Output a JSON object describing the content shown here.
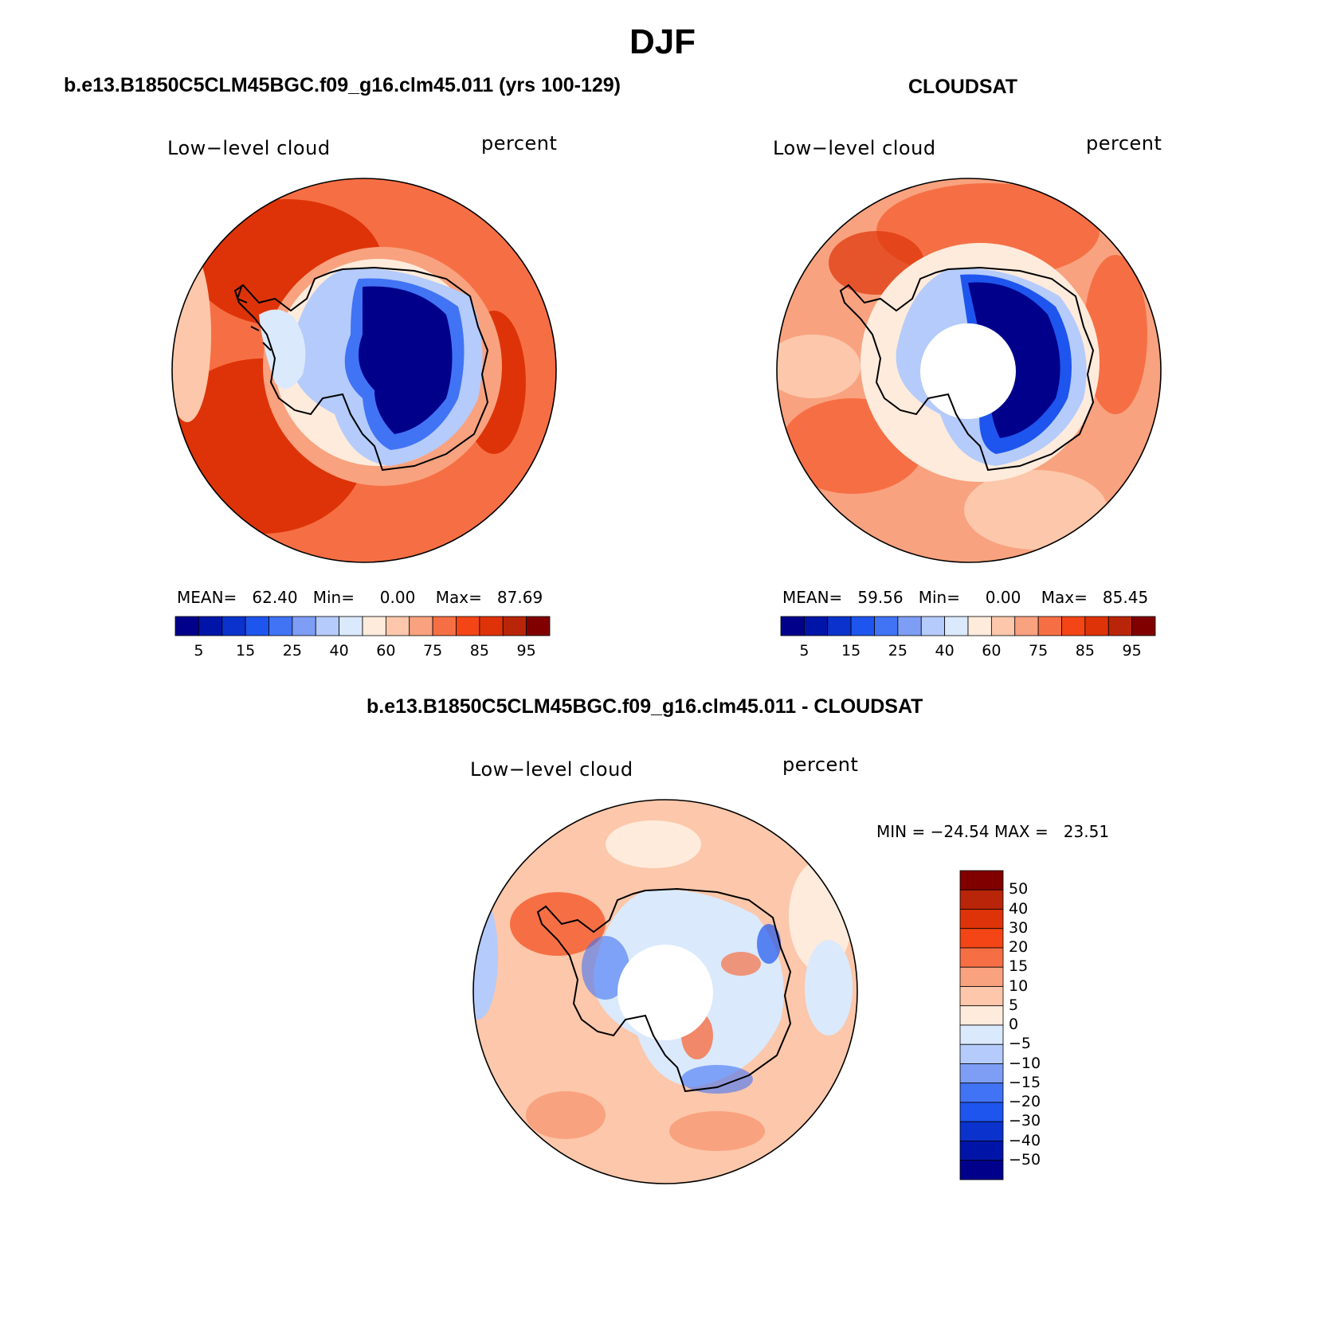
{
  "title": "DJF",
  "colors": {
    "seq": [
      "#00008b",
      "#0015a8",
      "#0b32cd",
      "#1e55ee",
      "#4173f5",
      "#7e9ef6",
      "#b4cbfb",
      "#dae9fc",
      "#feebdc",
      "#fcc7aa",
      "#f9a27f",
      "#f66f44",
      "#f34515",
      "#de3308",
      "#b92508",
      "#800000"
    ],
    "diff": [
      "#00008b",
      "#0015a8",
      "#0b32cd",
      "#1e55ee",
      "#4173f5",
      "#7e9ef6",
      "#b4cbfb",
      "#dae9fc",
      "#feebdc",
      "#fcc7aa",
      "#f9a27f",
      "#f66f44",
      "#f34515",
      "#de3308",
      "#b92508",
      "#800000"
    ]
  },
  "panels": {
    "model": {
      "title": "b.e13.B1850C5CLM45BGC.f09_g16.clm45.011 (yrs 100-129)",
      "field": "Low−level cloud",
      "units": "percent",
      "mean_label": "MEAN=",
      "mean": "62.40",
      "min_label": "Min=",
      "min": "0.00",
      "max_label": "Max=",
      "max": "87.69",
      "ticks": [
        "5",
        "15",
        "25",
        "40",
        "60",
        "75",
        "85",
        "95"
      ]
    },
    "obs": {
      "title": "CLOUDSAT",
      "field": "Low−level cloud",
      "units": "percent",
      "mean_label": "MEAN=",
      "mean": "59.56",
      "min_label": "Min=",
      "min": "0.00",
      "max_label": "Max=",
      "max": "85.45",
      "ticks": [
        "5",
        "15",
        "25",
        "40",
        "60",
        "75",
        "85",
        "95"
      ]
    },
    "diff": {
      "title": "b.e13.B1850C5CLM45BGC.f09_g16.clm45.011 - CLOUDSAT",
      "field": "Low−level cloud",
      "units": "percent",
      "minmax": "MIN = −24.54 MAX =   23.51",
      "ticks": [
        "50",
        "40",
        "30",
        "20",
        "15",
        "10",
        "5",
        "0",
        "−5",
        "−10",
        "−15",
        "−20",
        "−30",
        "−40",
        "−50"
      ]
    }
  }
}
